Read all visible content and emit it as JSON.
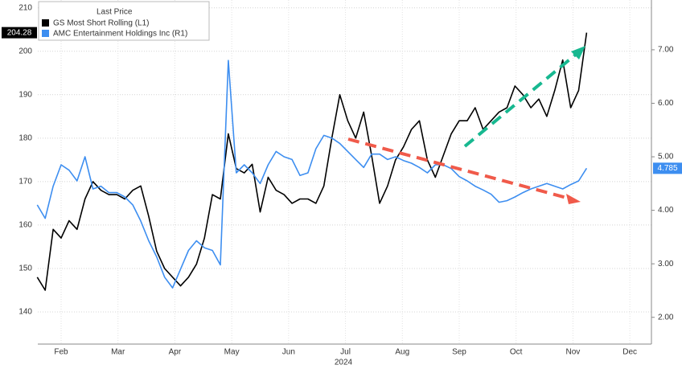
{
  "chart_data": {
    "type": "line",
    "legend_title": "Last Price",
    "legend": "upper left",
    "grid": true,
    "annotations": [
      "2024"
    ],
    "xlim": [
      1.09,
      11.88
    ],
    "xticks": [
      {
        "value": 1.5,
        "label": "Feb"
      },
      {
        "value": 2.5,
        "label": "Mar"
      },
      {
        "value": 3.5,
        "label": "Apr"
      },
      {
        "value": 4.5,
        "label": "May"
      },
      {
        "value": 5.5,
        "label": "Jun"
      },
      {
        "value": 6.5,
        "label": "Jul"
      },
      {
        "value": 7.5,
        "label": "Aug"
      },
      {
        "value": 8.5,
        "label": "Sep"
      },
      {
        "value": 9.5,
        "label": "Oct"
      },
      {
        "value": 10.5,
        "label": "Nov"
      },
      {
        "value": 11.5,
        "label": "Dec"
      }
    ],
    "ylim": [
      132.6,
      211.8
    ],
    "yticks": [
      140,
      150,
      160,
      170,
      180,
      190,
      200,
      210
    ],
    "y2lim": [
      1.5,
      7.93
    ],
    "y2ticks": [
      {
        "value": 2,
        "label": "2.00"
      },
      {
        "value": 3,
        "label": "3.00"
      },
      {
        "value": 4,
        "label": "4.00"
      },
      {
        "value": 5,
        "label": "5.00"
      },
      {
        "value": 6,
        "label": "6.00"
      },
      {
        "value": 7,
        "label": "7.00"
      }
    ],
    "x": [
      1.08,
      1.22,
      1.36,
      1.5,
      1.64,
      1.78,
      1.92,
      2.06,
      2.2,
      2.34,
      2.48,
      2.62,
      2.76,
      2.9,
      3.04,
      3.18,
      3.32,
      3.46,
      3.6,
      3.74,
      3.88,
      4.02,
      4.16,
      4.3,
      4.44,
      4.58,
      4.72,
      4.86,
      5.0,
      5.14,
      5.28,
      5.42,
      5.56,
      5.7,
      5.84,
      5.98,
      6.12,
      6.26,
      6.4,
      6.54,
      6.68,
      6.82,
      6.96,
      7.1,
      7.24,
      7.38,
      7.52,
      7.66,
      7.8,
      7.94,
      8.08,
      8.22,
      8.36,
      8.5,
      8.64,
      8.78,
      8.92,
      9.06,
      9.2,
      9.34,
      9.48,
      9.62,
      9.76,
      9.9,
      10.04,
      10.18,
      10.32,
      10.46,
      10.6,
      10.74
    ],
    "series": [
      {
        "name": "GS Most Short Rolling  (L1)",
        "color": "#000000",
        "axis": "y",
        "last_label": "204.28",
        "values": [
          148,
          145,
          159,
          157,
          161,
          159,
          166,
          170,
          168,
          167,
          167,
          166,
          168,
          169,
          162,
          154,
          150,
          148,
          146,
          148,
          151,
          157,
          167,
          166,
          181,
          173,
          172,
          174,
          163,
          171,
          168,
          167,
          165,
          166,
          166,
          165,
          169,
          180,
          190,
          184,
          180,
          186,
          176,
          165,
          169,
          175,
          178,
          182,
          184,
          175,
          171,
          176,
          181,
          184,
          184,
          187,
          182,
          184,
          186,
          187,
          192,
          190,
          187,
          189,
          185,
          191,
          198,
          187,
          191,
          204.28
        ]
      },
      {
        "name": "AMC Entertainment Holdings Inc  (R1)",
        "color": "#3d8ef0",
        "axis": "y2",
        "last_label": "4.785",
        "values": [
          4.1,
          3.85,
          4.45,
          4.85,
          4.75,
          4.55,
          5.0,
          4.4,
          4.45,
          4.33,
          4.33,
          4.25,
          4.1,
          3.8,
          3.43,
          3.13,
          2.75,
          2.55,
          2.9,
          3.25,
          3.43,
          3.3,
          3.25,
          2.98,
          6.8,
          4.7,
          4.85,
          4.7,
          4.5,
          4.85,
          5.1,
          5.0,
          4.95,
          4.65,
          4.7,
          5.15,
          5.4,
          5.35,
          5.25,
          5.1,
          4.95,
          4.8,
          5.05,
          5.05,
          4.95,
          5.0,
          4.93,
          4.88,
          4.8,
          4.7,
          4.85,
          4.85,
          4.78,
          4.63,
          4.55,
          4.45,
          4.38,
          4.3,
          4.15,
          4.18,
          4.25,
          4.33,
          4.4,
          4.45,
          4.5,
          4.45,
          4.4,
          4.48,
          4.55,
          4.785
        ]
      }
    ]
  }
}
